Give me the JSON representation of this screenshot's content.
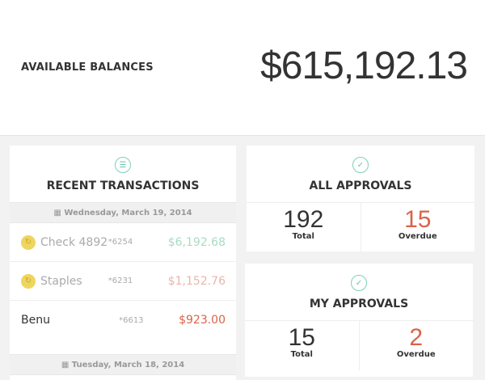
{
  "balance": {
    "label": "AVAILABLE BALANCES",
    "amount": "$615,192.13"
  },
  "transactions": {
    "icon": "list-icon",
    "title": "RECENT TRANSACTIONS",
    "groups": [
      {
        "date": "Wednesday, March 19, 2014",
        "items": [
          {
            "name": "Check 4892",
            "account": "*6254",
            "amount": "$6,192.68",
            "pending": true,
            "amount_color": "#a8dcc4"
          },
          {
            "name": "Staples",
            "account": "*6231",
            "amount": "$1,152.76",
            "pending": true,
            "amount_color": "#eab5aa"
          },
          {
            "name": "Benu",
            "account": "*6613",
            "amount": "$923.00",
            "pending": false,
            "amount_color": "#d9634a"
          }
        ]
      },
      {
        "date": "Tuesday, March 18, 2014"
      }
    ]
  },
  "all_approvals": {
    "icon": "check-circle-icon",
    "title": "ALL APPROVALS",
    "total": "192",
    "total_label": "Total",
    "overdue": "15",
    "overdue_label": "Overdue"
  },
  "my_approvals": {
    "icon": "check-circle-icon",
    "title": "MY APPROVALS",
    "total": "15",
    "total_label": "Total",
    "overdue": "2",
    "overdue_label": "Overdue"
  }
}
